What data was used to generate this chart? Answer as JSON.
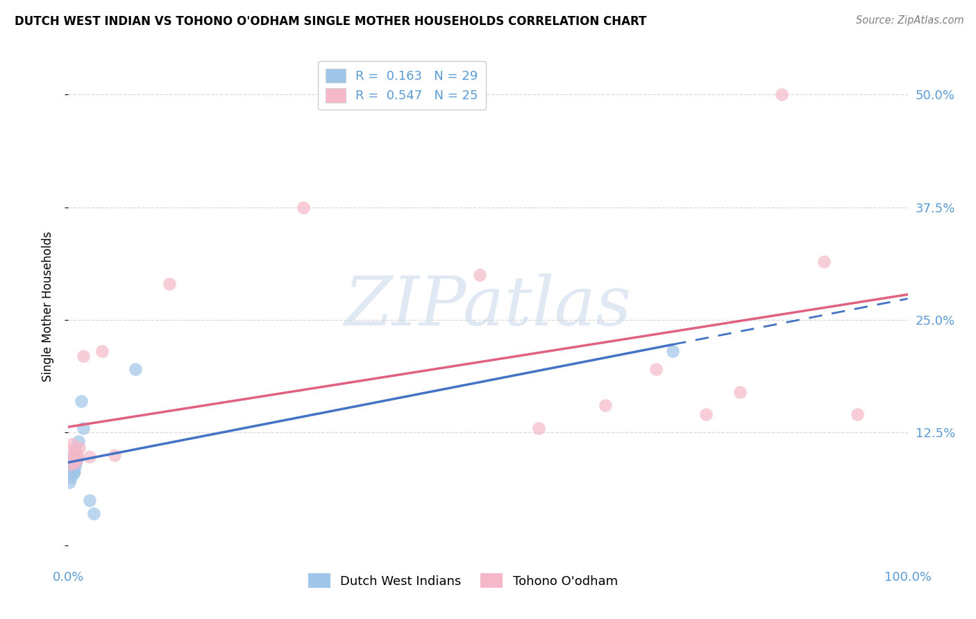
{
  "title": "DUTCH WEST INDIAN VS TOHONO O'ODHAM SINGLE MOTHER HOUSEHOLDS CORRELATION CHART",
  "source": "Source: ZipAtlas.com",
  "ylabel": "Single Mother Households",
  "xlim": [
    0.0,
    1.0
  ],
  "ylim": [
    -0.02,
    0.55
  ],
  "yticks": [
    0.0,
    0.125,
    0.25,
    0.375,
    0.5
  ],
  "yticklabels": [
    "",
    "12.5%",
    "25.0%",
    "37.5%",
    "50.0%"
  ],
  "xtick_labels": [
    "0.0%",
    "100.0%"
  ],
  "tick_color": "#5b9bd5",
  "blue_color": "#9fc5e8",
  "pink_color": "#f4b8c8",
  "blue_line_color": "#4472c4",
  "pink_line_color": "#e06080",
  "grid_color": "#d8d8d8",
  "watermark_text": "ZIPatlas",
  "watermark_color": "#c8d8ea",
  "blue_label": "Dutch West Indians",
  "pink_label": "Tohono O'odham",
  "legend1_r": "0.163",
  "legend1_n": "29",
  "legend2_r": "0.547",
  "legend2_n": "25",
  "blue_x": [
    0.001,
    0.002,
    0.002,
    0.003,
    0.003,
    0.003,
    0.004,
    0.004,
    0.004,
    0.005,
    0.005,
    0.005,
    0.006,
    0.006,
    0.006,
    0.007,
    0.007,
    0.007,
    0.008,
    0.008,
    0.009,
    0.01,
    0.012,
    0.015,
    0.018,
    0.025,
    0.03,
    0.08,
    0.72
  ],
  "blue_y": [
    0.07,
    0.085,
    0.095,
    0.075,
    0.088,
    0.095,
    0.082,
    0.09,
    0.095,
    0.085,
    0.092,
    0.098,
    0.08,
    0.088,
    0.095,
    0.082,
    0.09,
    0.095,
    0.088,
    0.095,
    0.092,
    0.095,
    0.115,
    0.16,
    0.13,
    0.05,
    0.035,
    0.195,
    0.215
  ],
  "pink_x": [
    0.003,
    0.004,
    0.005,
    0.006,
    0.007,
    0.008,
    0.009,
    0.01,
    0.011,
    0.013,
    0.018,
    0.025,
    0.04,
    0.055,
    0.12,
    0.28,
    0.49,
    0.56,
    0.64,
    0.7,
    0.76,
    0.8,
    0.85,
    0.9,
    0.94
  ],
  "pink_y": [
    0.105,
    0.09,
    0.112,
    0.098,
    0.098,
    0.092,
    0.105,
    0.1,
    0.097,
    0.108,
    0.21,
    0.098,
    0.215,
    0.1,
    0.29,
    0.375,
    0.3,
    0.13,
    0.155,
    0.195,
    0.145,
    0.17,
    0.5,
    0.315,
    0.145
  ]
}
